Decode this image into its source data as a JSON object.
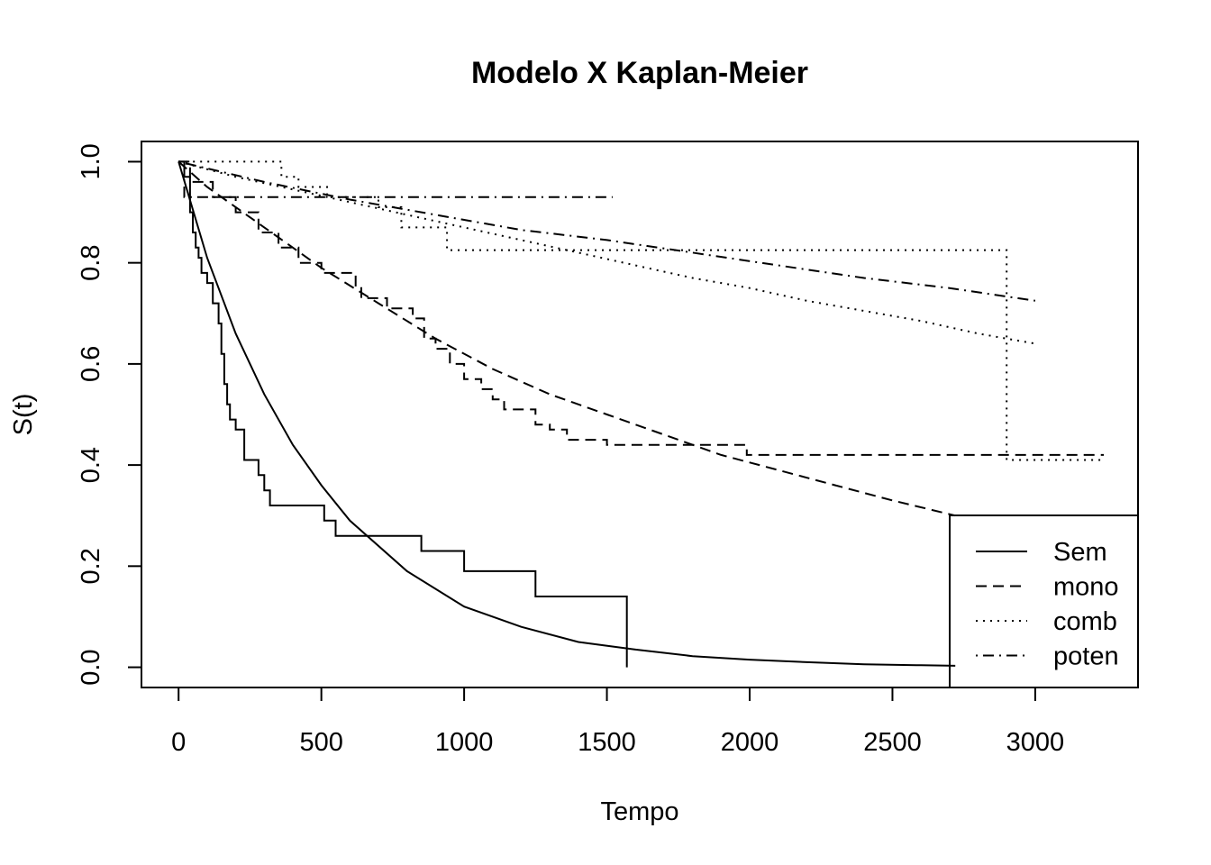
{
  "chart_data": {
    "type": "line",
    "title": "Modelo X Kaplan-Meier",
    "xlabel": "Tempo",
    "ylabel": "S(t)",
    "xlim": [
      -130,
      3360
    ],
    "ylim": [
      -0.04,
      1.04
    ],
    "xticks": [
      0,
      500,
      1000,
      1500,
      2000,
      2500,
      3000
    ],
    "yticks": [
      0.0,
      0.2,
      0.4,
      0.6,
      0.8,
      1.0
    ],
    "xtick_labels": [
      "0",
      "500",
      "1000",
      "1500",
      "2000",
      "2500",
      "3000"
    ],
    "ytick_labels": [
      "0.0",
      "0.2",
      "0.4",
      "0.6",
      "0.8",
      "1.0"
    ],
    "grid": false,
    "legend_position": "bottom-right",
    "legend": [
      {
        "label": "Sem",
        "style": "solid"
      },
      {
        "label": "mono",
        "style": "dashed"
      },
      {
        "label": "comb",
        "style": "dotted"
      },
      {
        "label": "poten",
        "style": "dotdash"
      }
    ],
    "series": [
      {
        "group": "Sem",
        "kind": "km-step",
        "style": "solid",
        "x": [
          0,
          20,
          40,
          50,
          60,
          70,
          80,
          100,
          120,
          140,
          150,
          160,
          170,
          180,
          200,
          230,
          280,
          300,
          320,
          510,
          550,
          850,
          1000,
          1250,
          1570,
          1570
        ],
        "y": [
          1.0,
          0.97,
          0.9,
          0.86,
          0.83,
          0.81,
          0.78,
          0.76,
          0.72,
          0.68,
          0.62,
          0.56,
          0.52,
          0.49,
          0.47,
          0.41,
          0.38,
          0.35,
          0.32,
          0.29,
          0.26,
          0.23,
          0.19,
          0.14,
          0.14,
          0.0
        ]
      },
      {
        "group": "Sem",
        "kind": "model",
        "style": "solid",
        "x": [
          0,
          100,
          200,
          300,
          400,
          500,
          600,
          800,
          1000,
          1200,
          1400,
          1600,
          1800,
          2000,
          2200,
          2400,
          2600,
          2720
        ],
        "y": [
          1.0,
          0.81,
          0.66,
          0.54,
          0.44,
          0.36,
          0.29,
          0.19,
          0.12,
          0.08,
          0.05,
          0.035,
          0.022,
          0.015,
          0.01,
          0.006,
          0.004,
          0.003
        ]
      },
      {
        "group": "mono",
        "kind": "km-step",
        "style": "dashed",
        "x": [
          0,
          40,
          120,
          200,
          280,
          350,
          420,
          500,
          620,
          640,
          730,
          820,
          860,
          900,
          950,
          1000,
          1060,
          1100,
          1140,
          1250,
          1300,
          1360,
          1500,
          1990,
          3240
        ],
        "y": [
          1.0,
          0.96,
          0.93,
          0.9,
          0.86,
          0.83,
          0.8,
          0.78,
          0.75,
          0.73,
          0.71,
          0.69,
          0.65,
          0.63,
          0.6,
          0.57,
          0.55,
          0.53,
          0.51,
          0.48,
          0.47,
          0.45,
          0.44,
          0.42,
          0.42
        ]
      },
      {
        "group": "mono",
        "kind": "model",
        "style": "dashed",
        "x": [
          0,
          100,
          200,
          300,
          400,
          500,
          700,
          900,
          1100,
          1300,
          1500,
          1700,
          1900,
          2100,
          2300,
          2500,
          2720
        ],
        "y": [
          1.0,
          0.95,
          0.91,
          0.87,
          0.83,
          0.79,
          0.72,
          0.65,
          0.59,
          0.54,
          0.5,
          0.46,
          0.42,
          0.39,
          0.36,
          0.33,
          0.3
        ]
      },
      {
        "group": "comb",
        "kind": "km-step",
        "style": "dotted",
        "x": [
          0,
          340,
          360,
          420,
          520,
          700,
          780,
          940,
          1200,
          2900,
          2900,
          3240
        ],
        "y": [
          1.0,
          1.0,
          0.97,
          0.95,
          0.93,
          0.91,
          0.87,
          0.825,
          0.825,
          0.825,
          0.41,
          0.41
        ]
      },
      {
        "group": "comb",
        "kind": "model",
        "style": "dotted",
        "x": [
          0,
          200,
          400,
          600,
          800,
          1000,
          1200,
          1400,
          1600,
          1800,
          2000,
          2200,
          2400,
          2600,
          2800,
          3000
        ],
        "y": [
          1.0,
          0.97,
          0.945,
          0.92,
          0.895,
          0.87,
          0.845,
          0.82,
          0.795,
          0.77,
          0.75,
          0.725,
          0.705,
          0.685,
          0.66,
          0.64
        ]
      },
      {
        "group": "poten",
        "kind": "km-step",
        "style": "dotdash",
        "x": [
          0,
          20,
          1520
        ],
        "y": [
          1.0,
          0.93,
          0.93
        ]
      },
      {
        "group": "poten",
        "kind": "model",
        "style": "dotdash",
        "x": [
          0,
          300,
          600,
          900,
          1200,
          1500,
          1800,
          2100,
          2400,
          2700,
          3000
        ],
        "y": [
          1.0,
          0.96,
          0.925,
          0.895,
          0.865,
          0.845,
          0.82,
          0.795,
          0.77,
          0.75,
          0.725
        ]
      }
    ]
  }
}
